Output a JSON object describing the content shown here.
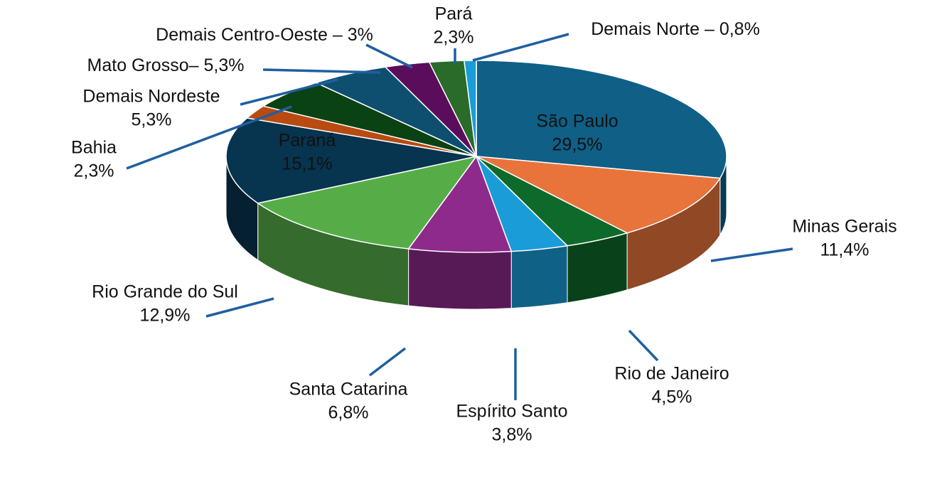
{
  "chart_data": {
    "type": "pie",
    "categories": [
      "São Paulo",
      "Minas Gerais",
      "Rio de Janeiro",
      "Espírito Santo",
      "Santa Catarina",
      "Rio Grande do Sul",
      "Paraná",
      "Bahia",
      "Demais Nordeste",
      "Mato Grosso–",
      "Demais Centro-Oeste –",
      "Pará",
      "Demais Norte –"
    ],
    "values": [
      29.5,
      11.4,
      4.5,
      3.8,
      6.8,
      12.9,
      15.1,
      2.3,
      5.3,
      5.3,
      3,
      2.3,
      0.8
    ],
    "value_labels": [
      "29,5%",
      "11,4%",
      "4,5%",
      "3,8%",
      "6,8%",
      "12,9%",
      "15,1%",
      "2,3%",
      "5,3%",
      "5,3%",
      "3%",
      "2,3%",
      "0,8%"
    ],
    "colors": [
      "#0f5f86",
      "#e8743b",
      "#0e6a2a",
      "#1a9cd8",
      "#8e2a8c",
      "#56ad47",
      "#07344f",
      "#b84a12",
      "#0b4214",
      "#0e4f6f",
      "#5a0d5a",
      "#2b6b2a",
      "#1a9cd8"
    ]
  }
}
